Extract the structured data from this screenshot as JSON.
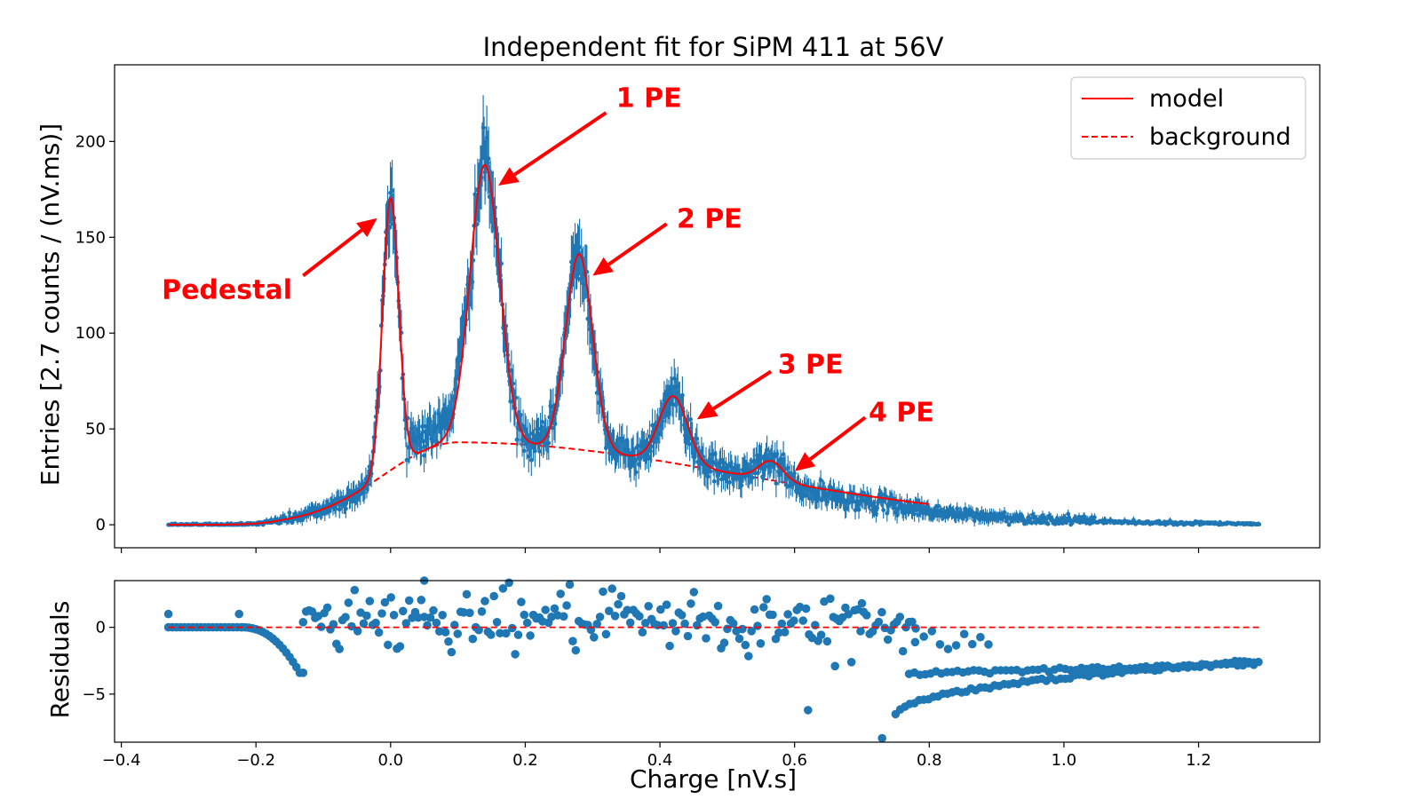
{
  "chart_data": [
    {
      "type": "scatter",
      "panel": "main",
      "title": "Independent fit for SiPM 411 at 56V",
      "ylabel": "Entries [2.7 counts / (nV.ms)]",
      "xlim": [
        -0.41,
        1.38
      ],
      "ylim": [
        -12,
        240
      ],
      "xticks": [
        -0.4,
        -0.2,
        0.0,
        0.2,
        0.4,
        0.6,
        0.8,
        1.0,
        1.2
      ],
      "yticks": [
        0,
        50,
        100,
        150,
        200
      ],
      "ytick_labels": [
        "0",
        "50",
        "100",
        "150",
        "200"
      ],
      "grid": false,
      "legend_position": "top-right",
      "legend": [
        {
          "label": "model",
          "style": "solid",
          "color": "#ff0000"
        },
        {
          "label": "background",
          "style": "dashed",
          "color": "#ff0000"
        }
      ],
      "data_color": "#1f77b4",
      "fit_color": "#ff0000",
      "x_range": [
        -0.33,
        1.29
      ],
      "model_params": {
        "background": {
          "amp": 43,
          "center": 0.1,
          "sigma_left": 0.11,
          "sigma_right": 0.42,
          "start": -0.22
        },
        "peaks": [
          {
            "label": "Pedestal",
            "x": 0.0,
            "height": 142,
            "sigma": 0.012
          },
          {
            "label": "1 PE",
            "x": 0.14,
            "height": 145,
            "sigma": 0.022
          },
          {
            "label": "2 PE",
            "x": 0.28,
            "height": 102,
            "sigma": 0.02
          },
          {
            "label": "3 PE",
            "x": 0.42,
            "height": 35,
            "sigma": 0.021
          },
          {
            "label": "4 PE",
            "x": 0.565,
            "height": 10,
            "sigma": 0.018
          }
        ]
      },
      "annotations": [
        {
          "text": "Pedestal",
          "text_x": -0.34,
          "text_y": 118,
          "arrow_from": [
            -0.13,
            130
          ],
          "arrow_to": [
            -0.02,
            160
          ]
        },
        {
          "text": "1 PE",
          "text_x": 0.335,
          "text_y": 218,
          "arrow_from": [
            0.32,
            215
          ],
          "arrow_to": [
            0.16,
            177
          ]
        },
        {
          "text": "2 PE",
          "text_x": 0.425,
          "text_y": 155,
          "arrow_from": [
            0.41,
            157
          ],
          "arrow_to": [
            0.3,
            130
          ]
        },
        {
          "text": "3 PE",
          "text_x": 0.575,
          "text_y": 79,
          "arrow_from": [
            0.565,
            80
          ],
          "arrow_to": [
            0.455,
            55
          ]
        },
        {
          "text": "4 PE",
          "text_x": 0.71,
          "text_y": 54,
          "arrow_from": [
            0.705,
            56
          ],
          "arrow_to": [
            0.6,
            28
          ]
        }
      ]
    },
    {
      "type": "scatter",
      "panel": "residuals",
      "xlabel": "Charge [nV.s]",
      "ylabel": "Residuals",
      "xlim": [
        -0.41,
        1.38
      ],
      "ylim": [
        -8.6,
        3.5
      ],
      "xticks": [
        -0.4,
        -0.2,
        0.0,
        0.2,
        0.4,
        0.6,
        0.8,
        1.0,
        1.2
      ],
      "xtick_labels": [
        "−0.4",
        "−0.2",
        "0.0",
        "0.2",
        "0.4",
        "0.6",
        "0.8",
        "1.0",
        "1.2"
      ],
      "yticks": [
        0,
        -5
      ],
      "ytick_labels": [
        "0",
        "−5"
      ],
      "grid": false,
      "zero_line": {
        "y": 0,
        "style": "dashed",
        "color": "#ff0000",
        "x_range": [
          -0.33,
          1.29
        ]
      }
    }
  ]
}
